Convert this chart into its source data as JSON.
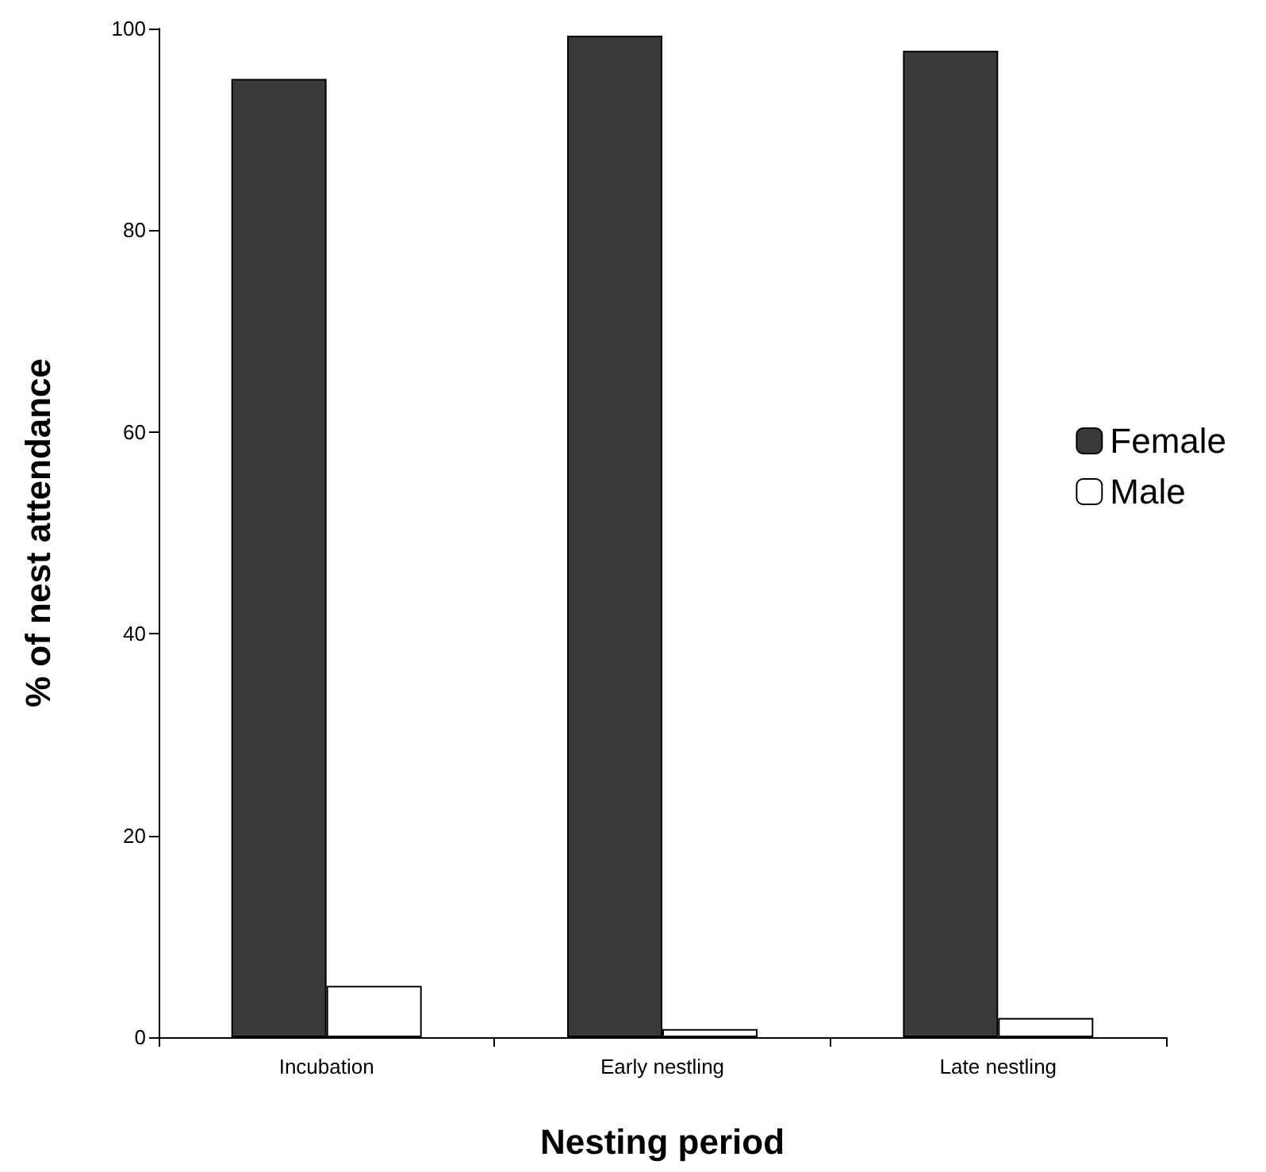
{
  "chart_data": {
    "type": "bar",
    "xlabel": "Nesting period",
    "ylabel": "% of nest attendance",
    "categories": [
      "Incubation",
      "Early nestling",
      "Late nestling"
    ],
    "series": [
      {
        "name": "Female",
        "color": "#3a3a3a",
        "values": [
          95,
          99.3,
          97.8
        ]
      },
      {
        "name": "Male",
        "color": "#ffffff",
        "values": [
          5.1,
          0.8,
          1.9
        ]
      }
    ],
    "ylim": [
      0,
      100
    ],
    "yticks": [
      0,
      20,
      40,
      60,
      80,
      100
    ],
    "grid": false,
    "legend": "right"
  }
}
